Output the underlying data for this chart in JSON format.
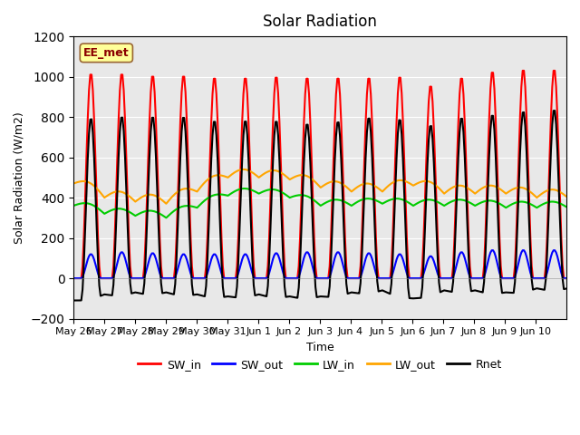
{
  "title": "Solar Radiation",
  "ylabel": "Solar Radiation (W/m2)",
  "xlabel": "Time",
  "ylim": [
    -200,
    1200
  ],
  "annotation_text": "EE_met",
  "annotation_color": "#8B0000",
  "annotation_bg": "#FFFF99",
  "annotation_edge": "#996633",
  "bg_color": "#E8E8E8",
  "series": {
    "SW_in": {
      "color": "#FF0000",
      "lw": 1.5
    },
    "SW_out": {
      "color": "#0000FF",
      "lw": 1.5
    },
    "LW_in": {
      "color": "#00CC00",
      "lw": 1.5
    },
    "LW_out": {
      "color": "#FFA500",
      "lw": 1.5
    },
    "Rnet": {
      "color": "#000000",
      "lw": 1.5
    }
  },
  "n_days": 16,
  "hours_per_day": 24,
  "SW_in_peaks": [
    1020,
    1020,
    1010,
    1010,
    1000,
    1000,
    1005,
    1000,
    1000,
    1000,
    1005,
    960,
    1000,
    1030,
    1040,
    1040
  ],
  "SW_out_peaks": [
    120,
    130,
    125,
    120,
    120,
    120,
    125,
    130,
    130,
    125,
    120,
    110,
    130,
    140,
    140,
    140
  ],
  "LW_in_base": [
    360,
    320,
    310,
    300,
    350,
    410,
    420,
    400,
    360,
    360,
    370,
    360,
    360,
    360,
    350,
    350
  ],
  "LW_out_base": [
    470,
    400,
    380,
    370,
    430,
    500,
    500,
    490,
    450,
    430,
    430,
    460,
    420,
    420,
    420,
    400
  ],
  "yticks": [
    -200,
    0,
    200,
    400,
    600,
    800,
    1000,
    1200
  ],
  "tick_labels": [
    "May 26",
    "May 27",
    "May 28",
    "May 29",
    "May 30",
    "May 31",
    "Jun 1",
    "Jun 2",
    "Jun 3",
    "Jun 4",
    "Jun 5",
    "Jun 6",
    "Jun 7",
    "Jun 8",
    "Jun 9",
    "Jun 10"
  ]
}
